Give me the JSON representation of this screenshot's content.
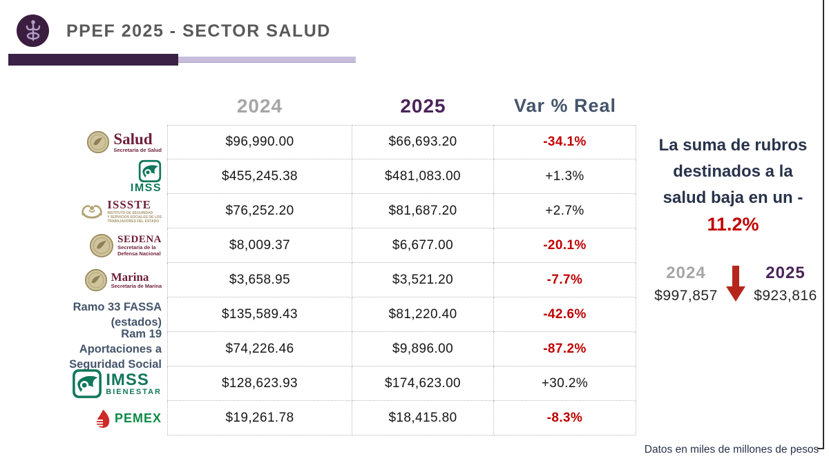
{
  "header": {
    "title": "PPEF 2025 - SECTOR SALUD",
    "icon": "caduceus-icon"
  },
  "columns": [
    "2024",
    "2025",
    "Var % Real"
  ],
  "table": {
    "rows": [
      {
        "logo": "salud",
        "title": "Salud",
        "subtitle": "Secretaría de Salud",
        "v2024": "$96,990.00",
        "v2025": "$66,693.20",
        "var": "-34.1%"
      },
      {
        "logo": "imss",
        "title": "IMSS",
        "subtitle": "",
        "v2024": "$455,245.38",
        "v2025": "$481,083.00",
        "var": "+1.3%"
      },
      {
        "logo": "issste",
        "title": "ISSSTE",
        "subtitle": "INSTITUTO DE SEGURIDAD\nY SERVICIOS SOCIALES DE LOS\nTRABAJADORES DEL ESTADO",
        "v2024": "$76,252.20",
        "v2025": "$81,687.20",
        "var": "+2.7%"
      },
      {
        "logo": "sedena",
        "title": "SEDENA",
        "subtitle": "Secretaría de la\nDefensa Nacional",
        "v2024": "$8,009.37",
        "v2025": "$6,677.00",
        "var": "-20.1%"
      },
      {
        "logo": "marina",
        "title": "Marina",
        "subtitle": "Secretaría de Marina",
        "v2024": "$3,658.95",
        "v2025": "$3,521.20",
        "var": "-7.7%"
      },
      {
        "logo": "none",
        "text": "Ramo 33 FASSA\n(estados)",
        "v2024": "$135,589.43",
        "v2025": "$81,220.40",
        "var": "-42.6%"
      },
      {
        "logo": "none",
        "text": "Ram 19 Aportaciones a\nSeguridad Social",
        "v2024": "$74,226.46",
        "v2025": "$9,896.00",
        "var": "-87.2%"
      },
      {
        "logo": "imss-bienestar",
        "title": "IMSS",
        "subtitle": "BIENESTAR",
        "v2024": "$128,623.93",
        "v2025": "$174,623.00",
        "var": "+30.2%"
      },
      {
        "logo": "pemex",
        "title": "PEMEX",
        "subtitle": "",
        "v2024": "$19,261.78",
        "v2025": "$18,415.80",
        "var": "-8.3%"
      }
    ]
  },
  "callout": {
    "lines": "La suma de rubros\ndestinados a la\nsalud baja en un -",
    "highlight": "11.2%"
  },
  "comparison": {
    "left_year": "2024",
    "left_value": "$997,857",
    "right_year": "2025",
    "right_value": "$923,816",
    "arrow_icon": "down-arrow-icon"
  },
  "footnote": "Datos en miles de millones de pesos",
  "colors": {
    "accent_purple_dark": "#3b2145",
    "accent_purple_light": "#c7bddb",
    "title_gray": "#595959",
    "year2024_gray": "#a6a6a6",
    "year2025_purple": "#4a2358",
    "var_slate": "#44546a",
    "negative_red": "#c00000",
    "gov_maroon": "#6e1e3a",
    "gov_gold": "#b3a274",
    "imss_green": "#11775a",
    "pemex_green": "#0c8a46",
    "pemex_red": "#cf2a27",
    "arrow_red": "#b5271b"
  },
  "chart_data": {
    "type": "table",
    "title": "PPEF 2025 - SECTOR SALUD",
    "columns": [
      "2024",
      "2025",
      "Var % Real"
    ],
    "units": "miles de millones de pesos",
    "rows": [
      {
        "entity": "Salud (Secretaría de Salud)",
        "y2024": 96990.0,
        "y2025": 66693.2,
        "var_pct": -34.1
      },
      {
        "entity": "IMSS",
        "y2024": 455245.38,
        "y2025": 481083.0,
        "var_pct": 1.3
      },
      {
        "entity": "ISSSTE",
        "y2024": 76252.2,
        "y2025": 81687.2,
        "var_pct": 2.7
      },
      {
        "entity": "SEDENA (Secretaría de la Defensa Nacional)",
        "y2024": 8009.37,
        "y2025": 6677.0,
        "var_pct": -20.1
      },
      {
        "entity": "Marina (Secretaría de Marina)",
        "y2024": 3658.95,
        "y2025": 3521.2,
        "var_pct": -7.7
      },
      {
        "entity": "Ramo 33 FASSA (estados)",
        "y2024": 135589.43,
        "y2025": 81220.4,
        "var_pct": -42.6
      },
      {
        "entity": "Ram 19 Aportaciones a Seguridad Social",
        "y2024": 74226.46,
        "y2025": 9896.0,
        "var_pct": -87.2
      },
      {
        "entity": "IMSS BIENESTAR",
        "y2024": 128623.93,
        "y2025": 174623.0,
        "var_pct": 30.2
      },
      {
        "entity": "PEMEX",
        "y2024": 19261.78,
        "y2025": 18415.8,
        "var_pct": -8.3
      }
    ],
    "totals": {
      "y2024": 997857,
      "y2025": 923816,
      "var_pct": -11.2
    }
  }
}
